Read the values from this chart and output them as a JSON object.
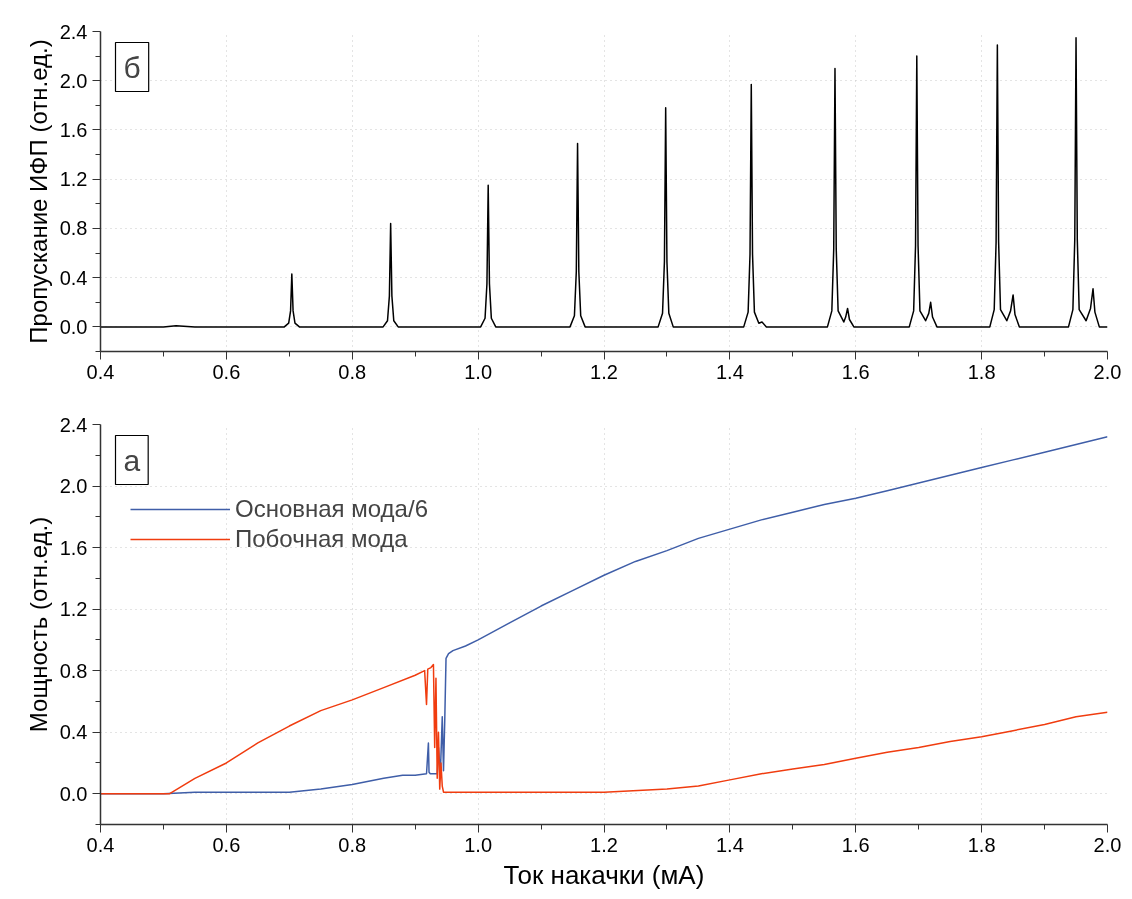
{
  "chart_data": [
    {
      "type": "line",
      "xlabel": null,
      "ylabel": "Пропускание ИФП (отн.ед.)",
      "annotations": [
        "б"
      ],
      "grid": true,
      "legend": false,
      "xlim": [
        0.4,
        2.0
      ],
      "ylim": [
        -0.2,
        2.4
      ],
      "xticks": [
        0.4,
        {
          "value": 0.5,
          "label": null
        },
        0.6,
        {
          "value": 0.7,
          "label": null
        },
        0.8,
        {
          "value": 0.9,
          "label": null
        },
        {
          "value": 1.0,
          "label": "1.0"
        },
        {
          "value": 1.1,
          "label": null
        },
        1.2,
        {
          "value": 1.3,
          "label": null
        },
        1.4,
        {
          "value": 1.5,
          "label": null
        },
        1.6,
        {
          "value": 1.7,
          "label": null
        },
        1.8,
        {
          "value": 1.9,
          "label": null
        },
        {
          "value": 2.0,
          "label": "2.0"
        }
      ],
      "yticks": [
        {
          "value": -0.2,
          "label": null
        },
        {
          "value": 0.0,
          "label": "0.0"
        },
        {
          "value": 0.2,
          "label": null
        },
        0.4,
        {
          "value": 0.6,
          "label": null
        },
        0.8,
        {
          "value": 1.0,
          "label": null
        },
        1.2,
        {
          "value": 1.4,
          "label": null
        },
        1.6,
        {
          "value": 1.8,
          "label": null
        },
        {
          "value": 2.0,
          "label": "2.0"
        },
        {
          "value": 2.2,
          "label": null
        },
        2.4
      ],
      "series": [
        {
          "color": "#000000",
          "x": [
            0.4,
            0.5,
            0.52,
            0.55,
            0.692,
            0.699,
            0.702,
            0.704,
            0.706,
            0.709,
            0.716,
            0.849,
            0.856,
            0.859,
            0.861,
            0.863,
            0.866,
            0.873,
            1.004,
            1.011,
            1.014,
            1.016,
            1.018,
            1.021,
            1.028,
            1.146,
            1.153,
            1.156,
            1.158,
            1.16,
            1.163,
            1.17,
            1.286,
            1.293,
            1.296,
            1.298,
            1.3,
            1.303,
            1.31,
            1.422,
            1.429,
            1.432,
            1.434,
            1.436,
            1.439,
            1.446,
            1.451,
            1.458,
            1.555,
            1.562,
            1.565,
            1.567,
            1.569,
            1.572,
            1.581,
            1.584,
            1.587,
            1.59,
            1.597,
            1.685,
            1.692,
            1.695,
            1.697,
            1.699,
            1.702,
            1.711,
            1.716,
            1.719,
            1.722,
            1.729,
            1.813,
            1.82,
            1.823,
            1.825,
            1.827,
            1.83,
            1.84,
            1.846,
            1.85,
            1.853,
            1.86,
            1.938,
            1.945,
            1.948,
            1.95,
            1.952,
            1.955,
            1.966,
            1.973,
            1.977,
            1.98,
            1.987,
            2.0
          ],
          "values": [
            0,
            0,
            0.01,
            0,
            0,
            0.03,
            0.13,
            0.43,
            0.13,
            0.03,
            0,
            0,
            0.05,
            0.25,
            0.84,
            0.25,
            0.05,
            0,
            0,
            0.07,
            0.35,
            1.15,
            0.35,
            0.07,
            0,
            0,
            0.09,
            0.45,
            1.49,
            0.45,
            0.09,
            0,
            0,
            0.11,
            0.53,
            1.78,
            0.53,
            0.11,
            0,
            0,
            0.12,
            0.59,
            1.97,
            0.59,
            0.12,
            0.03,
            0.04,
            0,
            0,
            0.13,
            0.63,
            2.1,
            0.63,
            0.13,
            0.04,
            0.08,
            0.15,
            0.06,
            0,
            0,
            0.13,
            0.66,
            2.2,
            0.66,
            0.13,
            0.05,
            0.11,
            0.2,
            0.08,
            0,
            0,
            0.14,
            0.69,
            2.29,
            0.69,
            0.14,
            0.05,
            0.13,
            0.26,
            0.1,
            0,
            0,
            0.14,
            0.71,
            2.35,
            0.71,
            0.14,
            0.05,
            0.15,
            0.31,
            0.12,
            0,
            0
          ]
        }
      ]
    },
    {
      "type": "line",
      "xlabel": "Ток накачки (мА)",
      "ylabel": "Мощность (отн.ед.)",
      "annotations": [
        "а"
      ],
      "grid": true,
      "legend": "top left",
      "xlim": [
        0.4,
        2.0
      ],
      "ylim": [
        -0.2,
        2.4
      ],
      "xticks": [
        0.4,
        {
          "value": 0.5,
          "label": null
        },
        0.6,
        {
          "value": 0.7,
          "label": null
        },
        0.8,
        {
          "value": 0.9,
          "label": null
        },
        {
          "value": 1.0,
          "label": "1.0"
        },
        {
          "value": 1.1,
          "label": null
        },
        1.2,
        {
          "value": 1.3,
          "label": null
        },
        1.4,
        {
          "value": 1.5,
          "label": null
        },
        1.6,
        {
          "value": 1.7,
          "label": null
        },
        1.8,
        {
          "value": 1.9,
          "label": null
        },
        {
          "value": 2.0,
          "label": "2.0"
        }
      ],
      "yticks": [
        {
          "value": -0.2,
          "label": null
        },
        {
          "value": 0.0,
          "label": "0.0"
        },
        {
          "value": 0.2,
          "label": null
        },
        0.4,
        {
          "value": 0.6,
          "label": null
        },
        0.8,
        {
          "value": 1.0,
          "label": null
        },
        1.2,
        {
          "value": 1.4,
          "label": null
        },
        1.6,
        {
          "value": 1.8,
          "label": null
        },
        {
          "value": 2.0,
          "label": "2.0"
        },
        {
          "value": 2.2,
          "label": null
        },
        2.4
      ],
      "series": [
        {
          "name": "Основная мода/6",
          "color": "#3f5ea8",
          "x": [
            0.4,
            0.45,
            0.5,
            0.55,
            0.6,
            0.65,
            0.7,
            0.75,
            0.8,
            0.85,
            0.88,
            0.9,
            0.918,
            0.921,
            0.922,
            0.924,
            0.93,
            0.935,
            0.937,
            0.94,
            0.943,
            0.945,
            0.947,
            0.949,
            0.953,
            0.96,
            0.98,
            1.0,
            1.05,
            1.1,
            1.15,
            1.2,
            1.25,
            1.3,
            1.35,
            1.4,
            1.45,
            1.5,
            1.55,
            1.6,
            1.65,
            1.7,
            1.75,
            1.8,
            1.85,
            1.9,
            1.95,
            2.0
          ],
          "values": [
            0,
            0,
            0,
            0.01,
            0.01,
            0.01,
            0.01,
            0.03,
            0.06,
            0.1,
            0.12,
            0.12,
            0.13,
            0.33,
            0.14,
            0.13,
            0.13,
            0.13,
            0.3,
            0.13,
            0.5,
            0.15,
            0.48,
            0.88,
            0.91,
            0.93,
            0.96,
            1.0,
            1.11,
            1.22,
            1.32,
            1.42,
            1.51,
            1.58,
            1.66,
            1.72,
            1.78,
            1.83,
            1.88,
            1.92,
            1.97,
            2.02,
            2.07,
            2.12,
            2.17,
            2.22,
            2.27,
            2.32
          ]
        },
        {
          "name": "Побочная мода",
          "color": "#f03c0f",
          "x": [
            0.4,
            0.45,
            0.5,
            0.51,
            0.55,
            0.6,
            0.65,
            0.7,
            0.75,
            0.8,
            0.85,
            0.9,
            0.915,
            0.918,
            0.92,
            0.925,
            0.929,
            0.931,
            0.933,
            0.935,
            0.937,
            0.939,
            0.941,
            0.943,
            0.945,
            0.95,
            1.0,
            1.1,
            1.2,
            1.3,
            1.35,
            1.4,
            1.45,
            1.5,
            1.55,
            1.6,
            1.65,
            1.7,
            1.75,
            1.8,
            1.85,
            1.9,
            1.95,
            2.0
          ],
          "values": [
            0,
            0,
            0,
            0,
            0.1,
            0.2,
            0.33,
            0.44,
            0.54,
            0.61,
            0.69,
            0.77,
            0.8,
            0.58,
            0.81,
            0.82,
            0.84,
            0.3,
            0.75,
            0.1,
            0.4,
            0.03,
            0.2,
            0.05,
            0.01,
            0.01,
            0.01,
            0.01,
            0.01,
            0.03,
            0.05,
            0.09,
            0.13,
            0.16,
            0.19,
            0.23,
            0.27,
            0.3,
            0.34,
            0.37,
            0.41,
            0.45,
            0.5,
            0.53
          ]
        }
      ]
    }
  ]
}
